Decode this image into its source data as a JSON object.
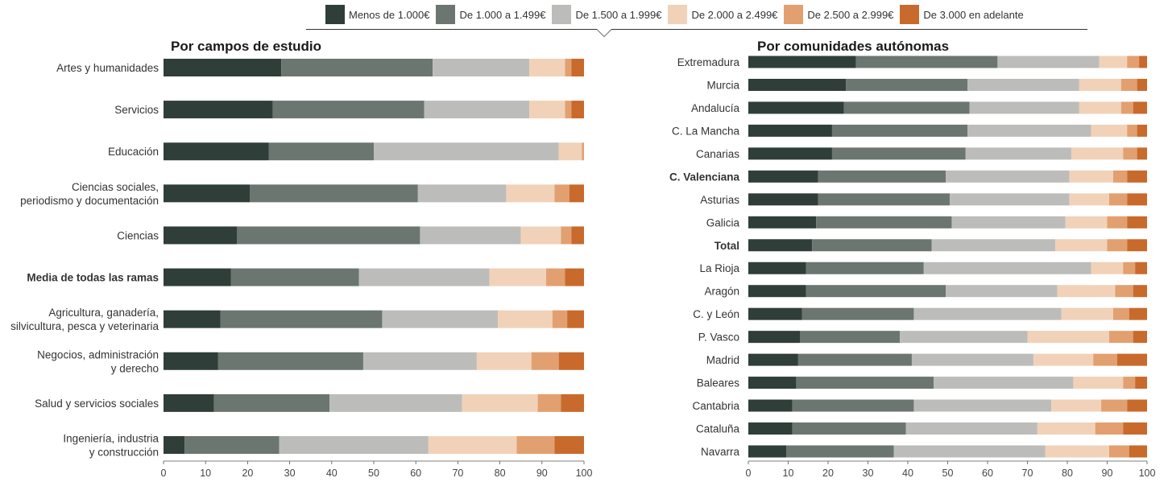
{
  "legend": {
    "items": [
      {
        "label": "Menos de  1.000€",
        "color": "#2f3e38"
      },
      {
        "label": "De 1.000 a 1.499€",
        "color": "#6b7670"
      },
      {
        "label": "De 1.500 a 1.999€",
        "color": "#bcbdba"
      },
      {
        "label": "De 2.000 a 2.499€",
        "color": "#f1d2b8"
      },
      {
        "label": "De 2.500 a 2.999€",
        "color": "#e2a070"
      },
      {
        "label": "De 3.000 en adelante",
        "color": "#c86a2c"
      }
    ]
  },
  "chart_data": [
    {
      "type": "bar",
      "orientation": "horizontal",
      "stacked": true,
      "title": "Por campos de estudio",
      "xlim": [
        0,
        100
      ],
      "xticks": [
        0,
        10,
        20,
        30,
        40,
        50,
        60,
        70,
        80,
        90,
        100
      ],
      "grid": false,
      "categories": [
        {
          "label": "Artes y humanidades",
          "bold": false
        },
        {
          "label": "Servicios",
          "bold": false
        },
        {
          "label": "Educación",
          "bold": false
        },
        {
          "label": "Ciencias sociales,\nperiodismo y documentación",
          "bold": false
        },
        {
          "label": "Ciencias",
          "bold": false
        },
        {
          "label": "Media de todas las ramas",
          "bold": true
        },
        {
          "label": "Agricultura, ganadería,\nsilvicultura, pesca y veterinaria",
          "bold": false
        },
        {
          "label": "Negocios, administración\ny derecho",
          "bold": false
        },
        {
          "label": "Salud y servicios sociales",
          "bold": false
        },
        {
          "label": "Ingeniería, industria\ny construcción",
          "bold": false
        }
      ],
      "series": [
        {
          "name": "Menos de  1.000€",
          "values": [
            28,
            26,
            25,
            20.5,
            17.5,
            16,
            13.5,
            13,
            12,
            5
          ]
        },
        {
          "name": "De 1.000 a 1.499€",
          "values": [
            36,
            36,
            25,
            40,
            43.5,
            30.5,
            38.5,
            34.5,
            27.5,
            22.5
          ]
        },
        {
          "name": "De 1.500 a 1.999€",
          "values": [
            23,
            25,
            44,
            21,
            24,
            31,
            27.5,
            27,
            31.5,
            35.5
          ]
        },
        {
          "name": "De 2.000 a 2.499€",
          "values": [
            8.5,
            8.5,
            5.5,
            11.5,
            9.5,
            13.5,
            13,
            13,
            18,
            21
          ]
        },
        {
          "name": "De 2.500 a 2.999€",
          "values": [
            1.5,
            1.5,
            0.5,
            3.5,
            2.5,
            4.5,
            3.5,
            6.5,
            5.5,
            9
          ]
        },
        {
          "name": "De 3.000 en adelante",
          "values": [
            3,
            3,
            0,
            3.5,
            3,
            4.5,
            4,
            6,
            5.5,
            7
          ]
        }
      ]
    },
    {
      "type": "bar",
      "orientation": "horizontal",
      "stacked": true,
      "title": "Por comunidades autónomas",
      "xlim": [
        0,
        100
      ],
      "xticks": [
        0,
        10,
        20,
        30,
        40,
        50,
        60,
        70,
        80,
        90,
        100
      ],
      "grid": false,
      "categories": [
        {
          "label": "Extremadura",
          "bold": false
        },
        {
          "label": "Murcia",
          "bold": false
        },
        {
          "label": "Andalucía",
          "bold": false
        },
        {
          "label": "C. La Mancha",
          "bold": false
        },
        {
          "label": "Canarias",
          "bold": false
        },
        {
          "label": "C. Valenciana",
          "bold": true
        },
        {
          "label": "Asturias",
          "bold": false
        },
        {
          "label": "Galicia",
          "bold": false
        },
        {
          "label": "Total",
          "bold": true
        },
        {
          "label": "La Rioja",
          "bold": false
        },
        {
          "label": "Aragón",
          "bold": false
        },
        {
          "label": "C. y León",
          "bold": false
        },
        {
          "label": "P. Vasco",
          "bold": false
        },
        {
          "label": "Madrid",
          "bold": false
        },
        {
          "label": "Baleares",
          "bold": false
        },
        {
          "label": "Cantabria",
          "bold": false
        },
        {
          "label": "Cataluña",
          "bold": false
        },
        {
          "label": "Navarra",
          "bold": false
        }
      ],
      "series": [
        {
          "name": "Menos de  1.000€",
          "values": [
            27,
            24.5,
            24,
            21,
            21,
            17.5,
            17.5,
            17,
            16,
            14.5,
            14.5,
            13.5,
            13,
            12.5,
            12,
            11,
            11,
            9.5
          ]
        },
        {
          "name": "De 1.000 a 1.499€",
          "values": [
            35.5,
            30.5,
            31.5,
            34,
            33.5,
            32,
            33,
            34,
            30,
            29.5,
            35,
            28,
            25,
            28.5,
            34.5,
            30.5,
            28.5,
            27
          ]
        },
        {
          "name": "De 1.500 a 1.999€",
          "values": [
            25.5,
            28,
            27.5,
            31,
            26.5,
            31,
            30,
            28.5,
            31,
            42,
            28,
            37,
            32,
            30.5,
            35,
            34.5,
            33,
            38
          ]
        },
        {
          "name": "De 2.000 a 2.499€",
          "values": [
            7,
            10.5,
            10.5,
            9,
            13,
            11,
            10,
            10.5,
            13,
            8,
            14.5,
            13,
            20.5,
            15,
            12.5,
            12.5,
            14.5,
            16
          ]
        },
        {
          "name": "De 2.500 a 2.999€",
          "values": [
            3,
            4,
            3,
            2.5,
            3.5,
            3.5,
            4.5,
            5,
            5,
            3,
            4.5,
            4,
            6,
            6,
            3,
            6.5,
            7,
            5
          ]
        },
        {
          "name": "De 3.000 en adelante",
          "values": [
            2,
            2.5,
            3.5,
            2.5,
            2.5,
            5,
            5,
            5,
            5,
            3,
            3.5,
            4.5,
            3.5,
            7.5,
            3,
            5,
            6,
            4.5
          ]
        }
      ]
    }
  ]
}
